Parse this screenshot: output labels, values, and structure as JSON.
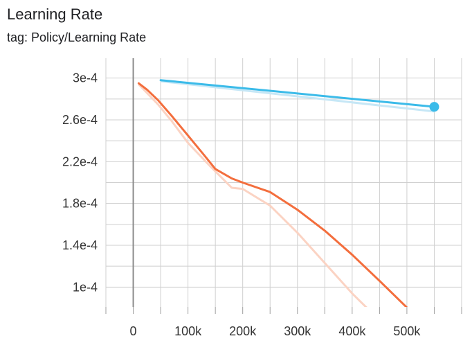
{
  "card": {
    "title": "Learning Rate",
    "tag": "tag: Policy/Learning Rate"
  },
  "chart_data": {
    "type": "line",
    "title": "Learning Rate",
    "subtitle": "tag: Policy/Learning Rate",
    "xlabel": "",
    "ylabel": "",
    "xlim": [
      -50000,
      600000
    ],
    "ylim": [
      8.1e-05,
      0.000319
    ],
    "grid": true,
    "x_ticks": [
      0,
      100000,
      200000,
      300000,
      400000,
      500000
    ],
    "x_tick_labels": [
      "0",
      "100k",
      "200k",
      "300k",
      "400k",
      "500k"
    ],
    "y_ticks": [
      0.0001,
      0.00014,
      0.00018,
      0.00022,
      0.00026,
      0.0003
    ],
    "y_tick_labels": [
      "1e-4",
      "1.4e-4",
      "1.8e-4",
      "2.2e-4",
      "2.6e-4",
      "3e-4"
    ],
    "series": [
      {
        "color": "#3bbbe9",
        "raw_color": "#c6e7f6",
        "marker_at_end": true,
        "x": [
          50000,
          550000
        ],
        "smoothed": [
          0.000298,
          0.0002725
        ],
        "raw": [
          0.000297,
          0.000268
        ]
      },
      {
        "color": "#f36e3d",
        "raw_color": "#fbd3c3",
        "marker_at_end": false,
        "x": [
          10000,
          25000,
          45000,
          70000,
          100000,
          130000,
          150000,
          180000,
          200000,
          250000,
          300000,
          350000,
          400000,
          450000,
          500000
        ],
        "smoothed": [
          0.000295,
          0.000289,
          0.000279,
          0.000264,
          0.000245,
          0.000226,
          0.000213,
          0.000204,
          0.0002,
          0.000191,
          0.000174,
          0.000154,
          0.000131,
          0.000106,
          8.05e-05
        ],
        "raw_x": [
          10000,
          45000,
          70000,
          100000,
          140000,
          180000,
          200000,
          250000,
          300000,
          350000,
          400000,
          430000
        ],
        "raw": [
          0.000294,
          0.000275,
          0.000259,
          0.000238,
          0.000216,
          0.000195,
          0.000194,
          0.000178,
          0.000152,
          0.000123,
          9.4e-05,
          7.85e-05
        ]
      }
    ]
  }
}
